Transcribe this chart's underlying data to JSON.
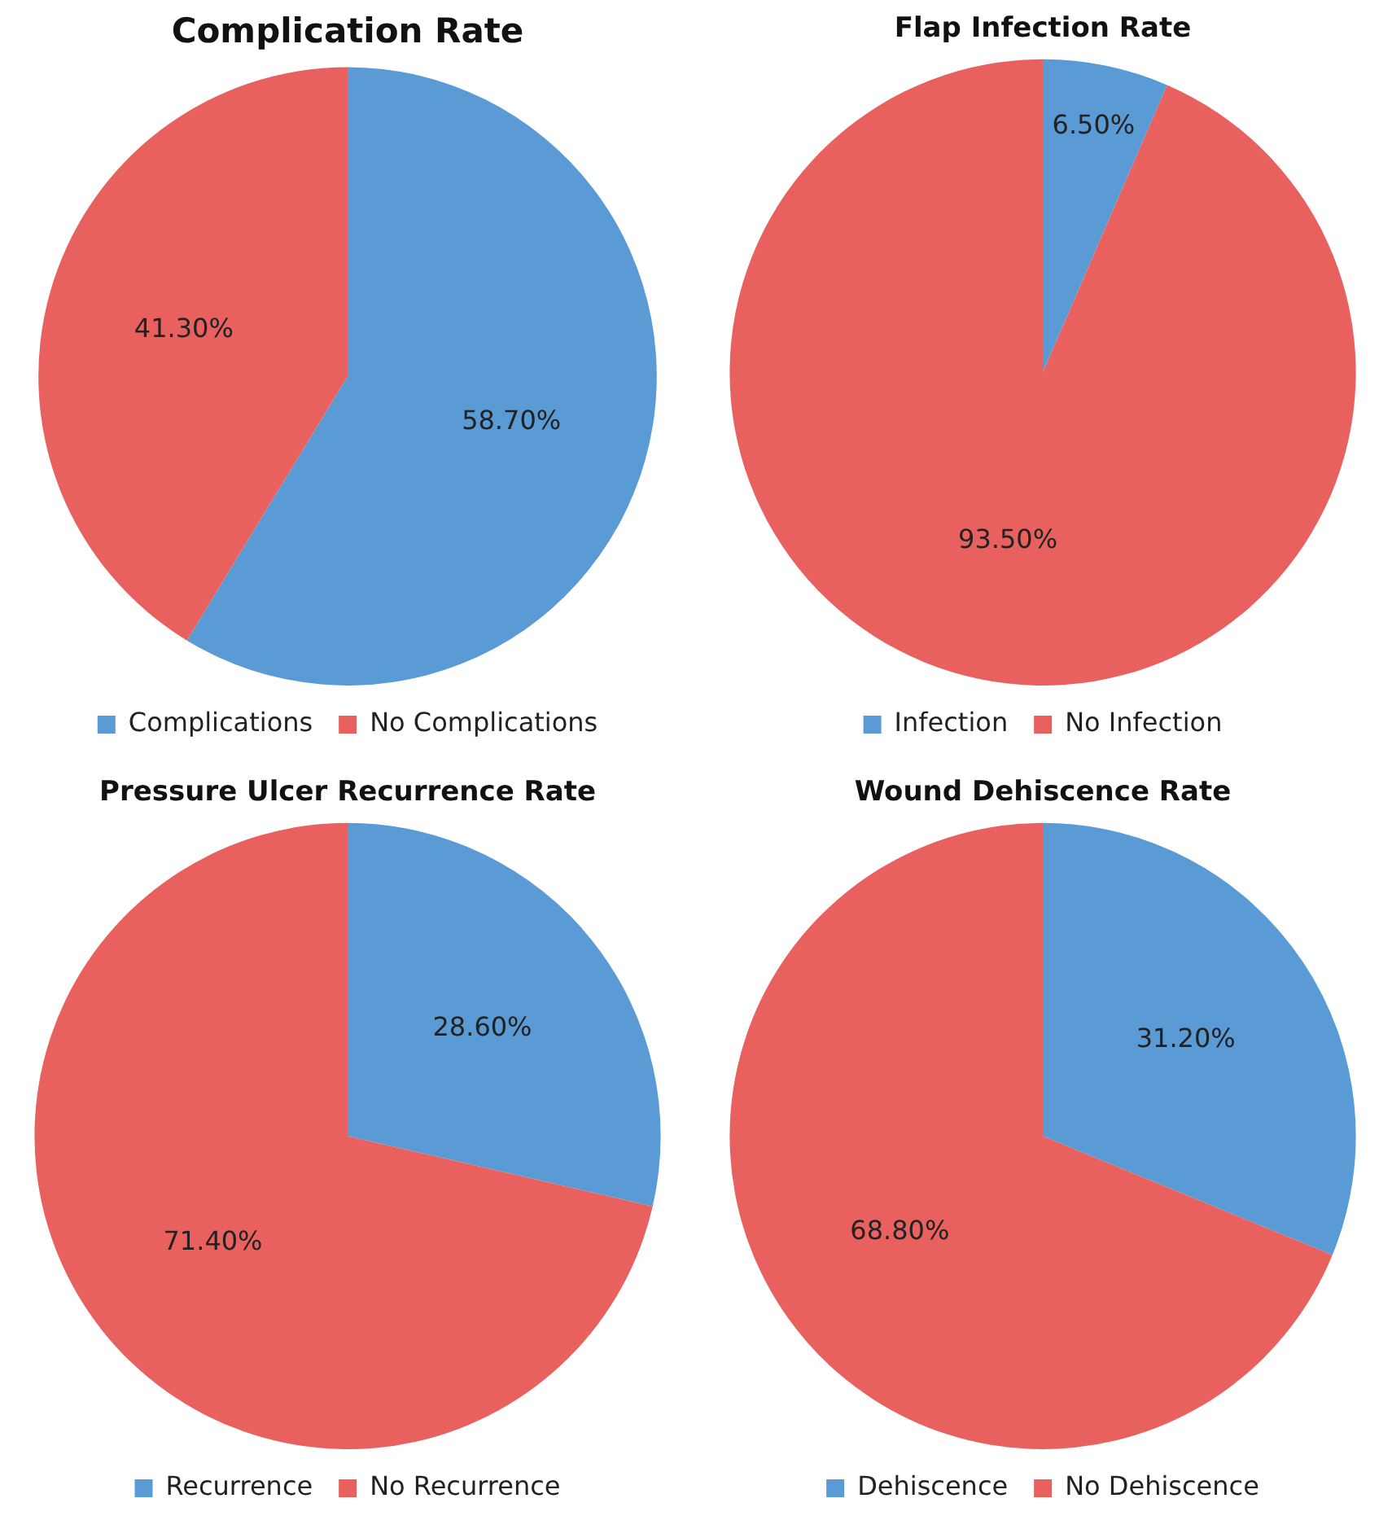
{
  "chart_data": [
    {
      "type": "pie",
      "title": "Complication Rate",
      "categories": [
        "Complications",
        "No Complications"
      ],
      "values": [
        58.7,
        41.3
      ],
      "colors": [
        "#5b9bd5",
        "#e8615f"
      ],
      "value_labels": [
        "58.70%",
        "41.30%"
      ],
      "legend": "bottom"
    },
    {
      "type": "pie",
      "title": "Flap Infection Rate",
      "categories": [
        "Infection",
        "No Infection"
      ],
      "values": [
        6.5,
        93.5
      ],
      "colors": [
        "#5b9bd5",
        "#e8615f"
      ],
      "value_labels": [
        "6.50%",
        "93.50%"
      ],
      "legend": "bottom"
    },
    {
      "type": "pie",
      "title": "Pressure Ulcer Recurrence Rate",
      "categories": [
        "Recurrence",
        "No Recurrence"
      ],
      "values": [
        28.6,
        71.4
      ],
      "colors": [
        "#5b9bd5",
        "#e8615f"
      ],
      "value_labels": [
        "28.60%",
        "71.40%"
      ],
      "legend": "bottom"
    },
    {
      "type": "pie",
      "title": "Wound Dehiscence Rate",
      "categories": [
        "Dehiscence",
        "No Dehiscence"
      ],
      "values": [
        31.2,
        68.8
      ],
      "colors": [
        "#5b9bd5",
        "#e8615f"
      ],
      "value_labels": [
        "31.20%",
        "68.80%"
      ],
      "legend": "bottom"
    }
  ]
}
